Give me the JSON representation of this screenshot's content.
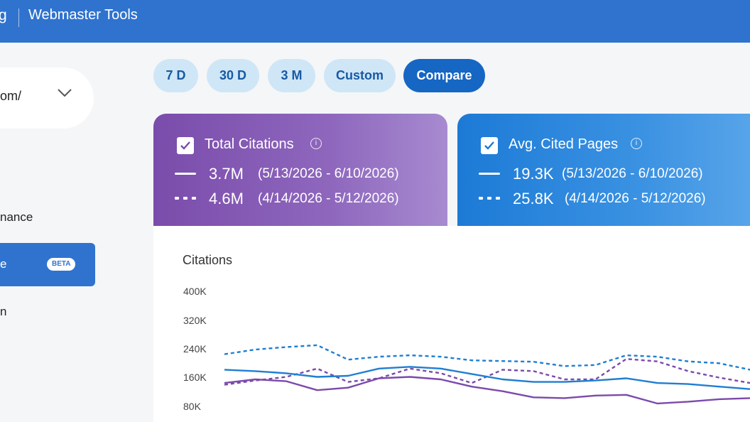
{
  "header": {
    "brand_fragment": "g",
    "product_name": "Webmaster Tools"
  },
  "sidebar": {
    "site_selector_value": "om/",
    "nav_items": [
      {
        "label": "nance"
      },
      {
        "label": "e",
        "badge": "BETA",
        "active": true
      },
      {
        "label": "n"
      }
    ]
  },
  "range_buttons": [
    {
      "label": "7 D",
      "active": false
    },
    {
      "label": "30 D",
      "active": false
    },
    {
      "label": "3 M",
      "active": false
    },
    {
      "label": "Custom",
      "active": false
    },
    {
      "label": "Compare",
      "active": true
    }
  ],
  "metrics": [
    {
      "title": "Total Citations",
      "checked": true,
      "current_value": "3.7M",
      "current_range": "(5/13/2026 - 6/10/2026)",
      "previous_value": "4.6M",
      "previous_range": "(4/14/2026 - 5/12/2026)",
      "color": "#7a4cab"
    },
    {
      "title": "Avg. Cited Pages",
      "checked": true,
      "current_value": "19.3K",
      "current_range": "(5/13/2026 - 6/10/2026)",
      "previous_value": "25.8K",
      "previous_range": "(4/14/2026 - 5/12/2026)",
      "color": "#1c7ad6"
    }
  ],
  "chart_data": {
    "type": "line",
    "ylabel": "Citations",
    "ytick_labels": [
      "400K",
      "320K",
      "240K",
      "160K",
      "80K"
    ],
    "ylim": [
      80000,
      400000
    ],
    "grid": false,
    "series": [
      {
        "line_style": "solid",
        "color": "#7b4aab",
        "values": [
          145000,
          155000,
          150000,
          125000,
          132000,
          158000,
          162000,
          155000,
          135000,
          122000,
          105000,
          103000,
          110000,
          112000,
          88000,
          93000,
          100000,
          103000
        ]
      },
      {
        "line_style": "dashed",
        "color": "#7b4aab",
        "values": [
          140000,
          152000,
          162000,
          185000,
          148000,
          158000,
          185000,
          172000,
          145000,
          182000,
          178000,
          155000,
          155000,
          212000,
          205000,
          178000,
          160000,
          145000
        ]
      },
      {
        "line_style": "solid",
        "color": "#1f7ed2",
        "values": [
          182000,
          178000,
          172000,
          162000,
          165000,
          185000,
          190000,
          185000,
          170000,
          155000,
          148000,
          148000,
          152000,
          158000,
          145000,
          142000,
          135000,
          128000
        ]
      },
      {
        "line_style": "dashed",
        "color": "#1f7ed2",
        "values": [
          225000,
          238000,
          245000,
          250000,
          210000,
          218000,
          222000,
          218000,
          208000,
          206000,
          204000,
          192000,
          195000,
          222000,
          218000,
          205000,
          200000,
          182000
        ]
      }
    ]
  }
}
